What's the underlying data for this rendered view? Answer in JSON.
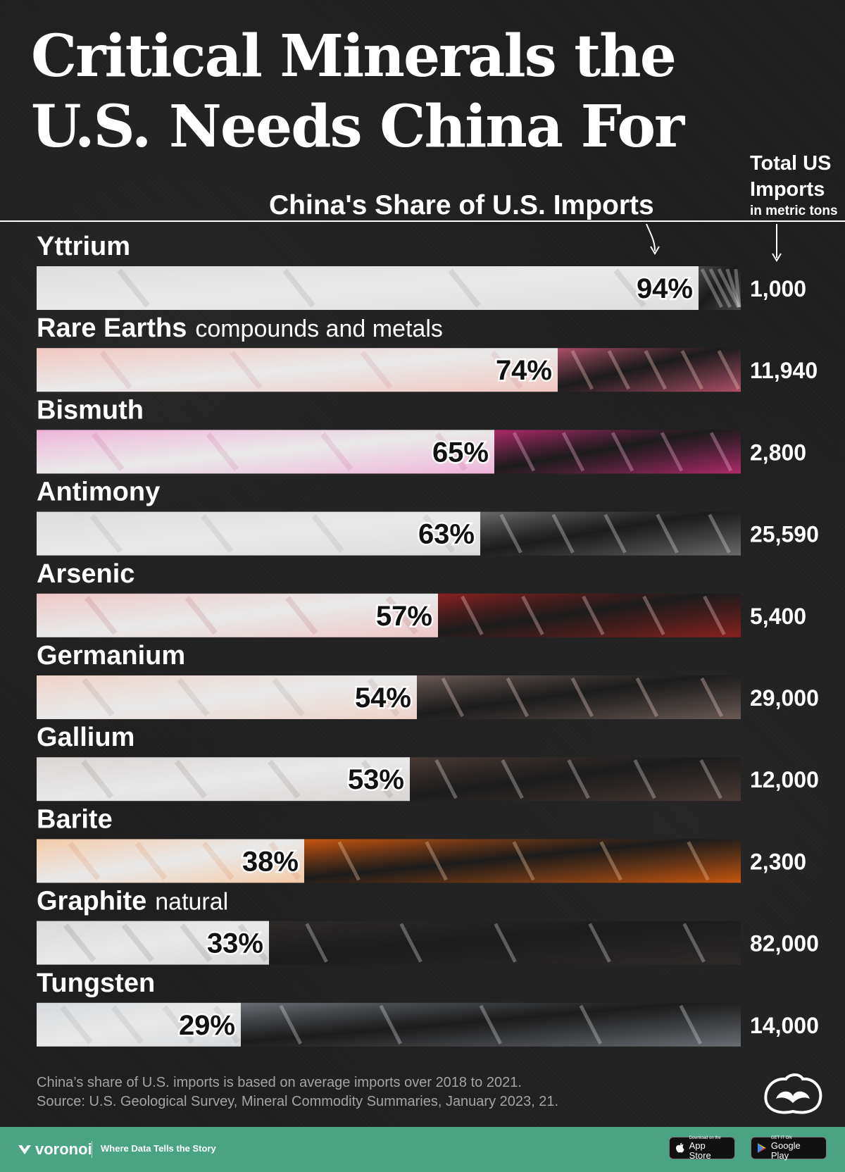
{
  "header": {
    "title_line1": "Critical Minerals the",
    "title_line2": "U.S. Needs China For",
    "subtitle": "China's Share of U.S. Imports",
    "column_head_line1": "Total US",
    "column_head_line2": "Imports",
    "column_head_unit": "in metric tons"
  },
  "chart_data": {
    "type": "bar",
    "orientation": "horizontal",
    "title": "Critical Minerals the U.S. Needs China For",
    "subtitle": "China's Share of U.S. Imports",
    "value_unit": "%",
    "secondary_column": "Total US Imports in metric tons",
    "categories": [
      "Yttrium",
      "Rare Earths",
      "Bismuth",
      "Antimony",
      "Arsenic",
      "Germanium",
      "Gallium",
      "Barite",
      "Graphite",
      "Tungsten"
    ],
    "category_qualifiers": [
      "",
      "compounds and metals",
      "",
      "",
      "",
      "",
      "",
      "",
      "natural",
      ""
    ],
    "values": [
      94,
      74,
      65,
      63,
      57,
      54,
      53,
      38,
      33,
      29
    ],
    "value_labels": [
      "94%",
      "74%",
      "65%",
      "63%",
      "57%",
      "54%",
      "53%",
      "38%",
      "33%",
      "29%"
    ],
    "total_imports": [
      1000,
      11940,
      2800,
      25590,
      5400,
      29000,
      12000,
      2300,
      82000,
      14000
    ],
    "total_imports_labels": [
      "1,000",
      "11,940",
      "2,800",
      "25,590",
      "5,400",
      "29,000",
      "12,000",
      "2,300",
      "82,000",
      "14,000"
    ],
    "xlim": [
      0,
      100
    ],
    "colors": [
      "#4a4a4a",
      "#b0506a",
      "#b02a6a",
      "#6a6a6a",
      "#8a2020",
      "#6a5a55",
      "#4a3a35",
      "#c8560e",
      "#2e2a2a",
      "#6a6e74"
    ],
    "light_colors": [
      "#dedede",
      "#f0c6c0",
      "#efb3d8",
      "#dcdcdc",
      "#edc6c6",
      "#eed2c8",
      "#d8d4d2",
      "#f4c9a6",
      "#d8d8d8",
      "#d6d9dc"
    ]
  },
  "footer": {
    "note": "China’s share of U.S. imports is based on average imports over 2018 to 2021.",
    "source": "Source: U.S. Geological Survey, Mineral Commodity Summaries, January 2023, 21."
  },
  "bottom_bar": {
    "brand": "voronoi",
    "tagline": "Where Data Tells the Story",
    "appstore_small": "Download on the",
    "appstore_big": "App Store",
    "googleplay_small": "GET IT ON",
    "googleplay_big": "Google Play",
    "color": "#4aa382"
  }
}
